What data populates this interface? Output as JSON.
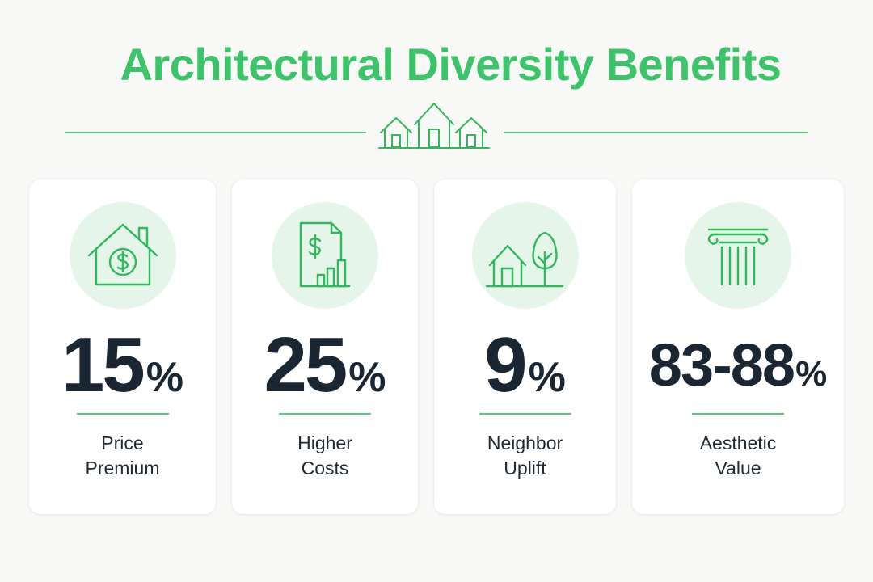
{
  "title": "Architectural Diversity Benefits",
  "colors": {
    "accent": "#3dc46a",
    "icon_stroke": "#2fb85c",
    "icon_bg": "#e6f5ea",
    "value_text": "#1a2631",
    "page_bg": "#f9f9f8",
    "card_bg": "#ffffff"
  },
  "header_icon": "three-houses-icon",
  "cards": [
    {
      "icon": "house-dollar-icon",
      "value": "15",
      "unit": "%",
      "label_line1": "Price",
      "label_line2": "Premium"
    },
    {
      "icon": "document-dollar-chart-icon",
      "value": "25",
      "unit": "%",
      "label_line1": "Higher",
      "label_line2": "Costs"
    },
    {
      "icon": "house-tree-icon",
      "value": "9",
      "unit": "%",
      "label_line1": "Neighbor",
      "label_line2": "Uplift"
    },
    {
      "icon": "column-icon",
      "value": "83-88",
      "unit": "%",
      "label_line1": "Aesthetic",
      "label_line2": "Value"
    }
  ]
}
